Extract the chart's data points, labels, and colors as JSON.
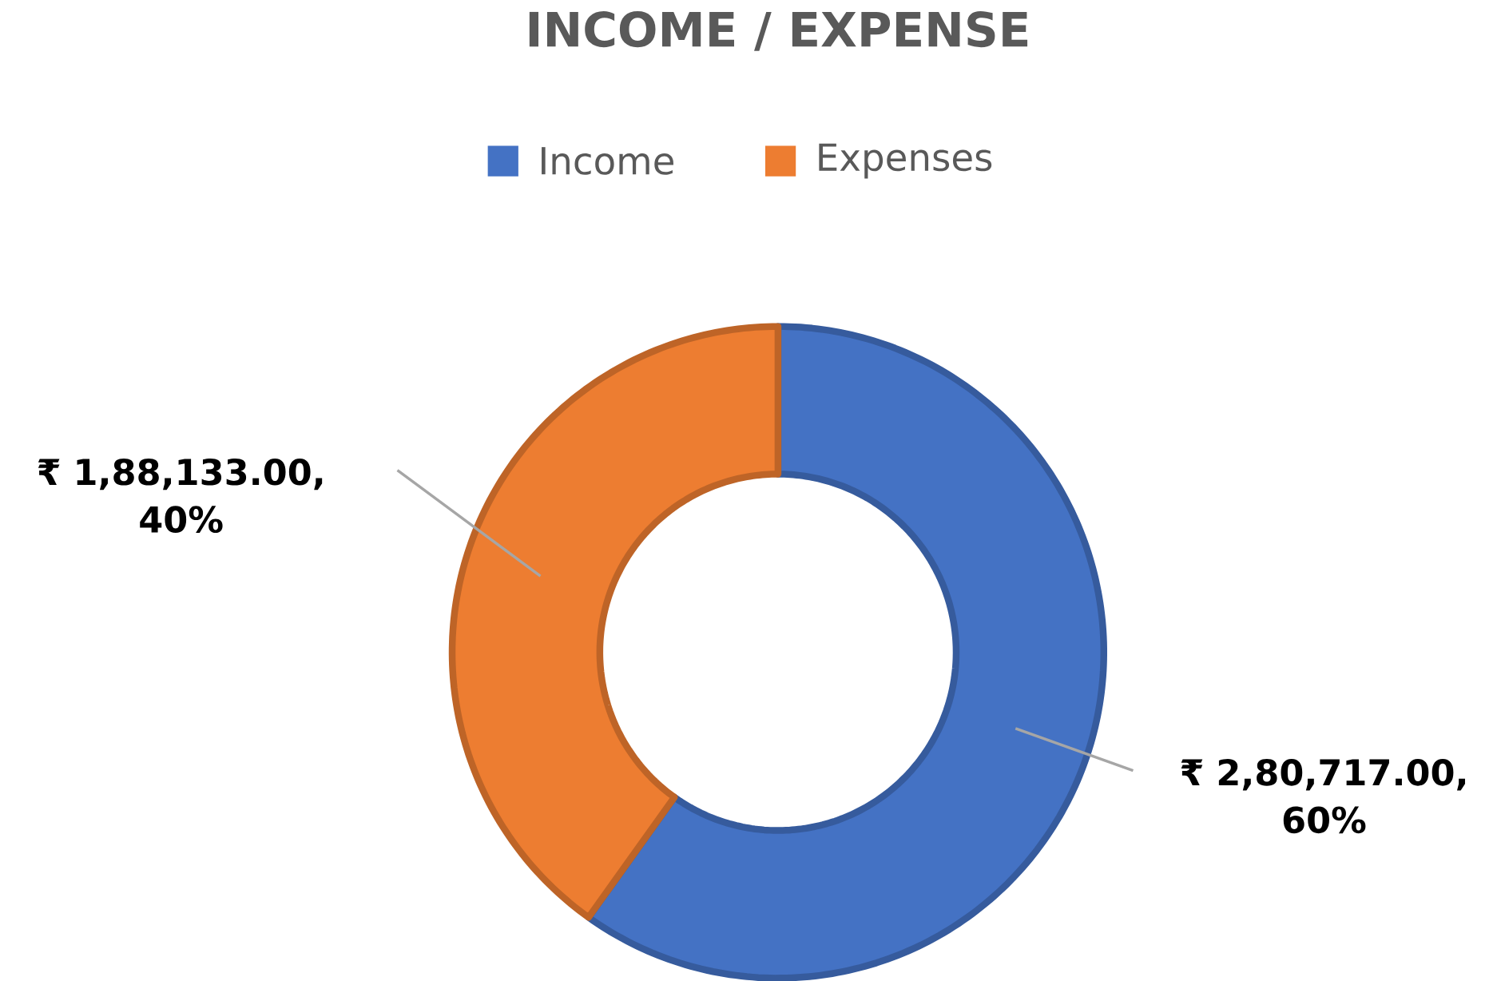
{
  "chart_data": {
    "type": "donut",
    "title": "INCOME / EXPENSE",
    "categories": [
      "Income",
      "Expenses"
    ],
    "values": [
      280717,
      188133
    ],
    "colors": [
      "#4472c4",
      "#ed7d31"
    ],
    "value_labels": [
      "₹ 2,80,717.00, 60%",
      "₹ 1,88,133.00, 40%"
    ],
    "legend": "top"
  }
}
